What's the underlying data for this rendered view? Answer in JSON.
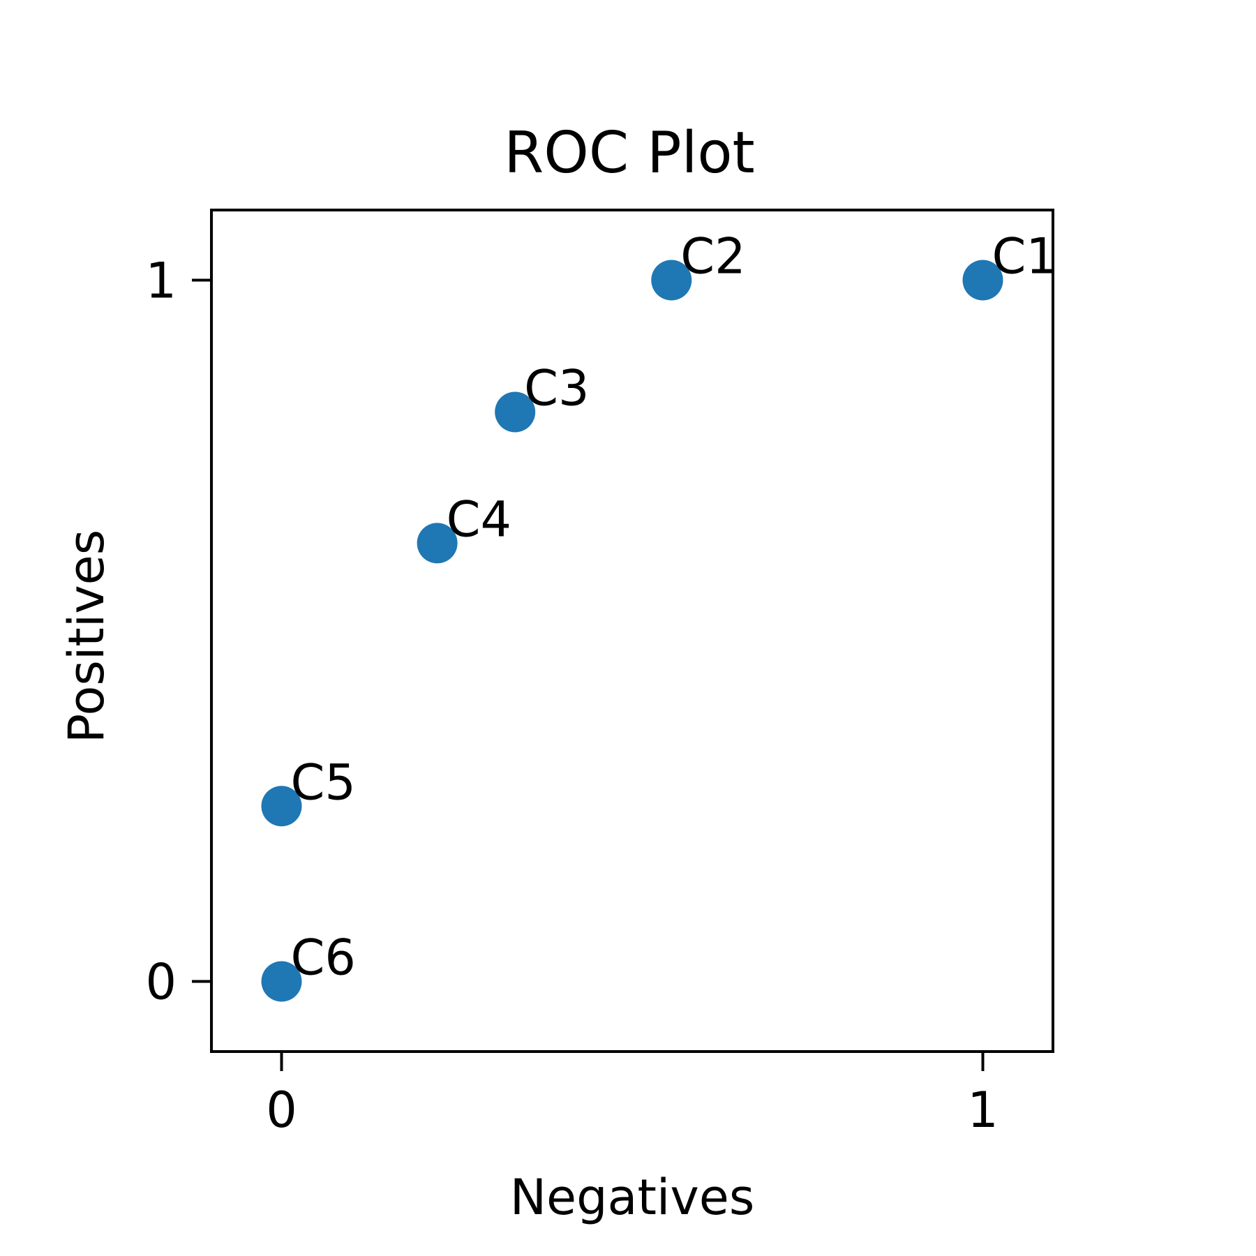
{
  "chart_data": {
    "type": "scatter",
    "title": "ROC Plot",
    "xlabel": "Negatives",
    "ylabel": "Positives",
    "xlim": [
      -0.1,
      1.1
    ],
    "ylim": [
      -0.1,
      1.1
    ],
    "xticks": [
      {
        "value": 0,
        "label": "0"
      },
      {
        "value": 1,
        "label": "1"
      }
    ],
    "yticks": [
      {
        "value": 0,
        "label": "0"
      },
      {
        "value": 1,
        "label": "1"
      }
    ],
    "grid": false,
    "marker_color": "#1f77b4",
    "points": [
      {
        "label": "C1",
        "x": 1.0,
        "y": 1.0
      },
      {
        "label": "C2",
        "x": 0.556,
        "y": 1.0
      },
      {
        "label": "C3",
        "x": 0.333,
        "y": 0.812
      },
      {
        "label": "C4",
        "x": 0.222,
        "y": 0.625
      },
      {
        "label": "C5",
        "x": 0.0,
        "y": 0.25
      },
      {
        "label": "C6",
        "x": 0.0,
        "y": 0.0
      }
    ]
  }
}
